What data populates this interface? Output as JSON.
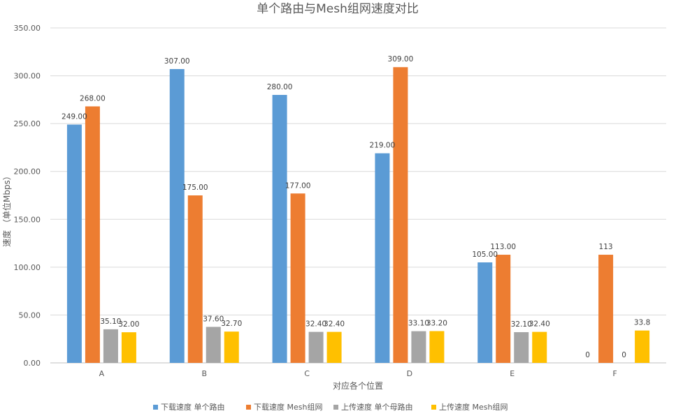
{
  "chart_data": {
    "type": "bar",
    "title": "单个路由与Mesh组网速度对比",
    "xlabel": "对应各个位置",
    "ylabel": "速度 （单位Mbps）",
    "categories": [
      "A",
      "B",
      "C",
      "D",
      "E",
      "F"
    ],
    "ylim": [
      0,
      350
    ],
    "yticks": [
      "0.00",
      "50.00",
      "100.00",
      "150.00",
      "200.00",
      "250.00",
      "300.00",
      "350.00"
    ],
    "grid": true,
    "legend_position": "bottom",
    "series": [
      {
        "name": "下载速度 单个路由",
        "color": "#5b9bd5",
        "values": [
          249,
          307,
          280,
          219,
          105,
          0
        ],
        "labels": [
          "249.00",
          "307.00",
          "280.00",
          "219.00",
          "105.00",
          "0"
        ]
      },
      {
        "name": "下载速度 Mesh组网",
        "color": "#ed7d31",
        "values": [
          268,
          175,
          177,
          309,
          113,
          113
        ],
        "labels": [
          "268.00",
          "175.00",
          "177.00",
          "309.00",
          "113.00",
          "113"
        ]
      },
      {
        "name": "上传速度 单个母路由",
        "color": "#a5a5a5",
        "values": [
          35.1,
          37.6,
          32.4,
          33.1,
          32.1,
          0
        ],
        "labels": [
          "35.10",
          "37.60",
          "32.40",
          "33.10",
          "32.10",
          "0"
        ]
      },
      {
        "name": "上传速度 Mesh组网",
        "color": "#ffc000",
        "values": [
          32,
          32.7,
          32.4,
          33.2,
          32.4,
          33.8
        ],
        "labels": [
          "32.00",
          "32.70",
          "32.40",
          "33.20",
          "32.40",
          "33.8"
        ]
      }
    ]
  }
}
